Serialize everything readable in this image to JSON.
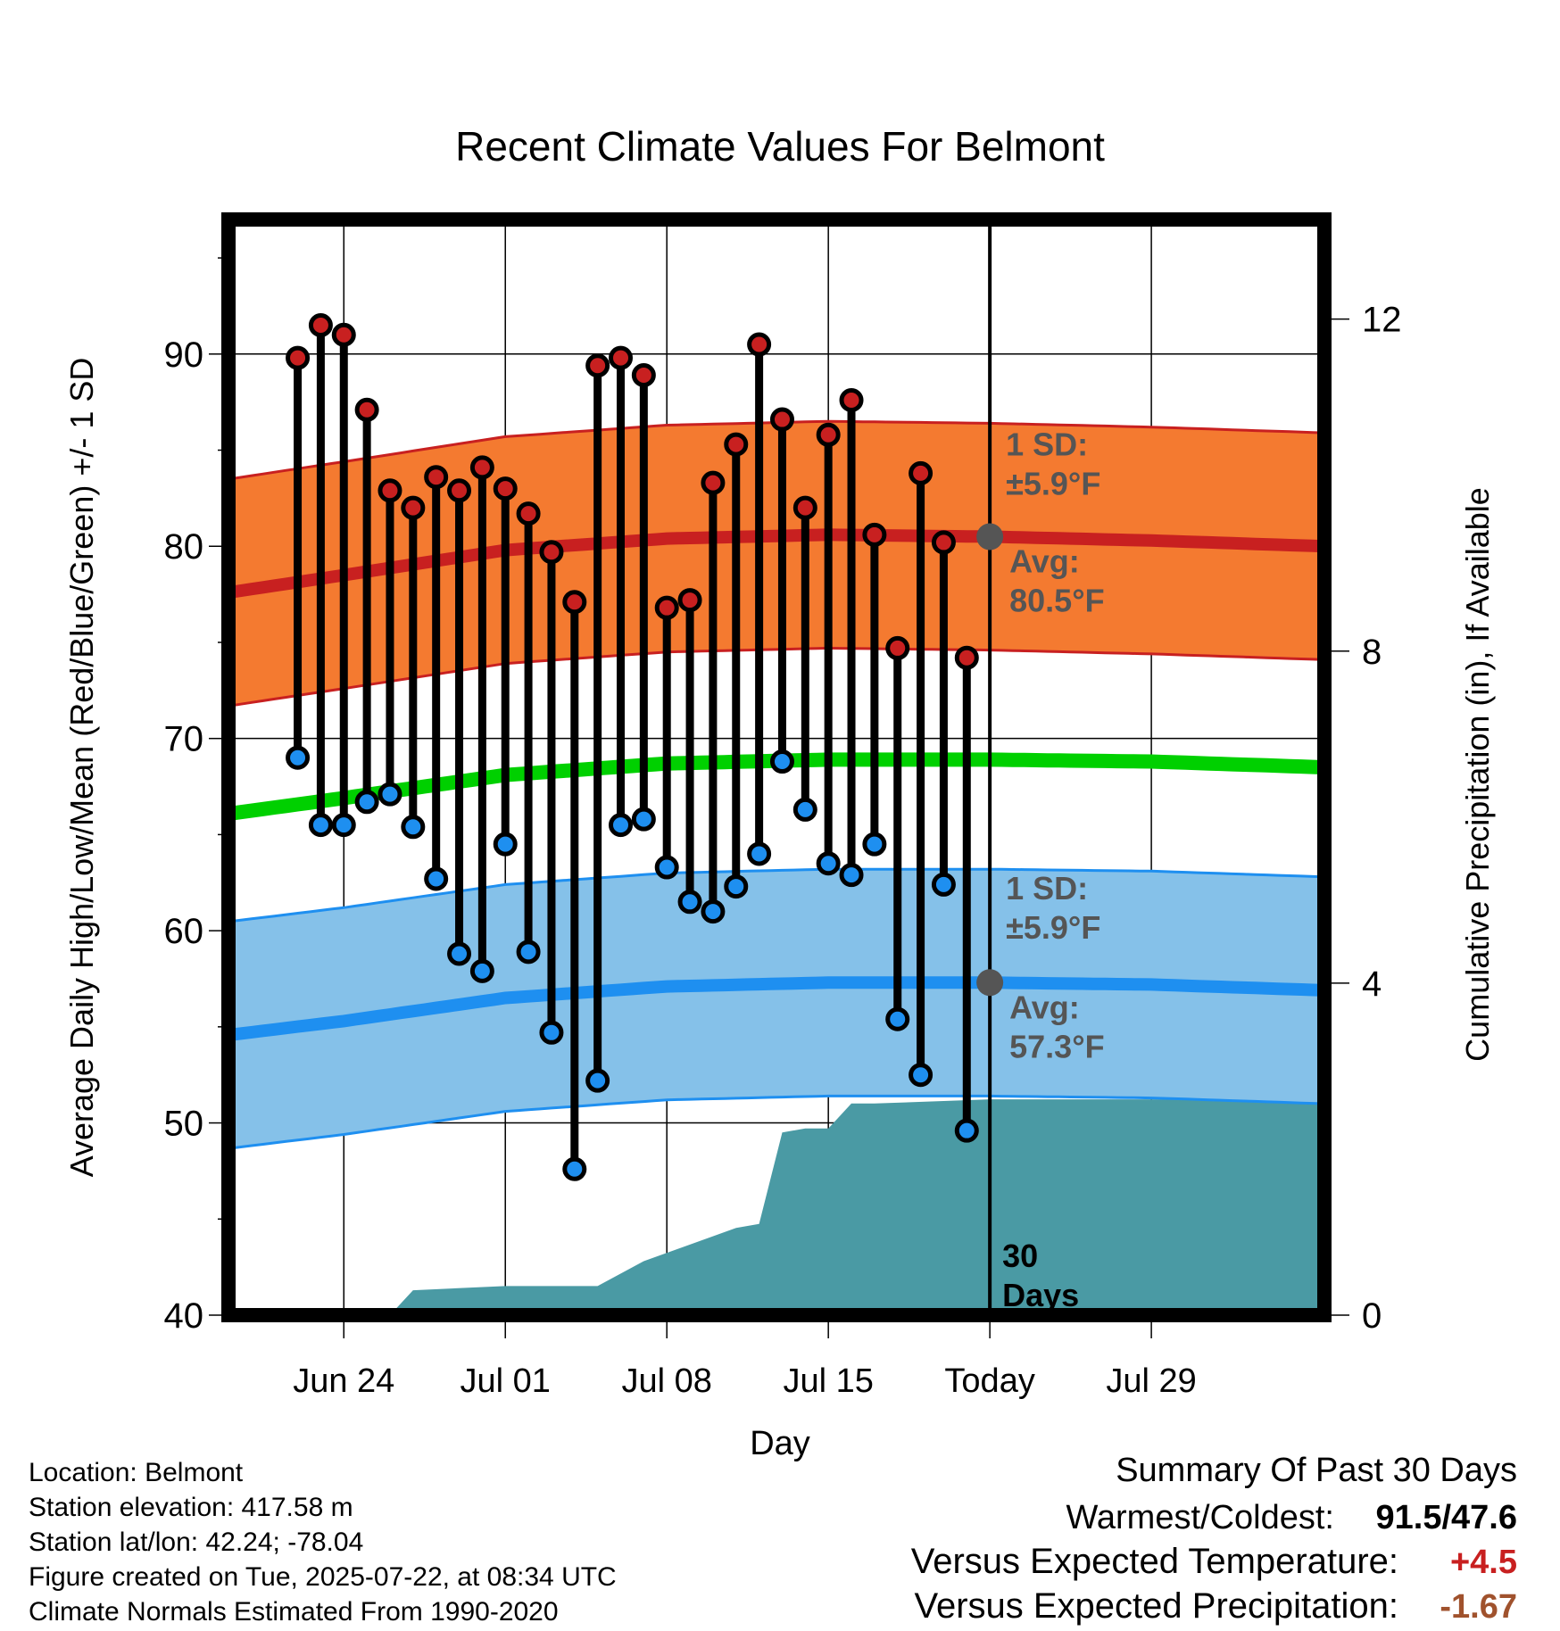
{
  "chart_data": {
    "type": "line",
    "title": "Recent Climate Values For Belmont",
    "xlabel": "Day",
    "ylabel": "Average Daily High/Low/Mean (Red/Blue/Green) +/- 1 SD",
    "y2label": "Cumulative Precipitation (in), If Available",
    "xlim": [
      -5,
      42.5
    ],
    "ylim": [
      40,
      97
    ],
    "y2lim": [
      0,
      13.2
    ],
    "y_ticks": [
      40,
      50,
      60,
      70,
      80,
      90
    ],
    "y_tick_labels": [
      "40",
      "50",
      "60",
      "70",
      "80",
      "90"
    ],
    "y2_ticks": [
      0,
      4,
      8,
      12
    ],
    "y2_tick_labels": [
      "0",
      "4",
      "8",
      "12"
    ],
    "x_ticks": [
      0,
      7,
      14,
      21,
      28,
      35
    ],
    "x_tick_labels": [
      "Jun 24",
      "Jul 01",
      "Jul 08",
      "Jul 15",
      "Today",
      "Jul 29"
    ],
    "grid": true,
    "normals": {
      "x": [
        -5.5,
        0,
        7,
        14,
        21,
        28,
        35,
        42.5
      ],
      "high_avg": [
        77.5,
        78.5,
        79.8,
        80.4,
        80.6,
        80.5,
        80.3,
        80.0
      ],
      "low_avg": [
        54.5,
        55.3,
        56.5,
        57.1,
        57.3,
        57.3,
        57.2,
        56.9
      ],
      "mean_avg": [
        66.0,
        66.9,
        68.1,
        68.7,
        68.9,
        68.9,
        68.8,
        68.5
      ],
      "high_sd": 5.9,
      "low_sd": 5.9
    },
    "series": [
      {
        "name": "High",
        "color": "#c82020",
        "x": [
          -2,
          -1,
          0,
          1,
          2,
          3,
          4,
          5,
          6,
          7,
          8,
          9,
          10,
          11,
          12,
          13,
          14,
          15,
          16,
          17,
          18,
          19,
          20,
          21,
          22,
          23,
          24,
          25,
          26,
          27
        ],
        "values": [
          89.8,
          91.5,
          91.0,
          87.1,
          82.9,
          82.0,
          83.6,
          82.9,
          84.1,
          83.0,
          81.7,
          79.7,
          77.1,
          89.4,
          89.8,
          88.9,
          76.8,
          77.2,
          83.3,
          85.3,
          90.5,
          86.6,
          82.0,
          85.8,
          87.6,
          80.6,
          74.7,
          83.8,
          80.2,
          74.2
        ]
      },
      {
        "name": "Low",
        "color": "#1e8ff0",
        "x": [
          -2,
          -1,
          0,
          1,
          2,
          3,
          4,
          5,
          6,
          7,
          8,
          9,
          10,
          11,
          12,
          13,
          14,
          15,
          16,
          17,
          18,
          19,
          20,
          21,
          22,
          23,
          24,
          25,
          26,
          27
        ],
        "values": [
          69.0,
          65.5,
          65.5,
          66.7,
          67.1,
          65.4,
          62.7,
          58.8,
          57.9,
          64.5,
          58.9,
          54.7,
          47.6,
          52.2,
          65.5,
          65.8,
          63.3,
          61.5,
          61.0,
          62.3,
          64.0,
          68.8,
          66.3,
          63.5,
          62.9,
          64.5,
          55.4,
          52.5,
          62.4,
          49.6
        ]
      }
    ],
    "precip": {
      "x": [
        -5,
        0,
        2,
        3,
        7,
        10,
        11,
        13,
        17,
        18,
        19,
        20,
        21,
        22,
        23,
        28,
        42.5
      ],
      "values": [
        0,
        0,
        0,
        0.3,
        0.35,
        0.35,
        0.35,
        0.65,
        1.05,
        1.1,
        2.2,
        2.25,
        2.25,
        2.55,
        2.55,
        2.6,
        2.6
      ]
    },
    "today_label": "Today",
    "annotations": {
      "high_sd_label": "1 SD:",
      "high_sd_value": "±5.9°F",
      "high_avg_label": "Avg:",
      "high_avg_value": "80.5°F",
      "low_sd_label": "1 SD:",
      "low_sd_value": "±5.9°F",
      "low_avg_label": "Avg:",
      "low_avg_value": "57.3°F",
      "precip_days_line1": "30",
      "precip_days_line2": "Days"
    },
    "colors": {
      "high_band": "#f47a30",
      "high_line": "#c82020",
      "low_band": "#85c1e9",
      "low_line": "#1e8ff0",
      "mean_line": "#00d000",
      "precip": "#4a9aa4",
      "annotation_text": "#555555"
    }
  },
  "footer": {
    "location": "Location: Belmont",
    "elevation": "Station elevation: 417.58 m",
    "latlon": "Station lat/lon: 42.24; -78.04",
    "created": "Figure created on Tue, 2025-07-22, at 08:34 UTC",
    "normals": "Climate Normals Estimated From 1990-2020"
  },
  "summary": {
    "title": "Summary Of Past 30 Days",
    "extremes_label": "Warmest/Coldest:",
    "extremes_value": "91.5/47.6",
    "temp_label": "Versus Expected Temperature:",
    "temp_value": "+4.5",
    "temp_color": "#c82020",
    "precip_label": "Versus Expected Precipitation:",
    "precip_value": "-1.67",
    "precip_color": "#a0522d"
  }
}
